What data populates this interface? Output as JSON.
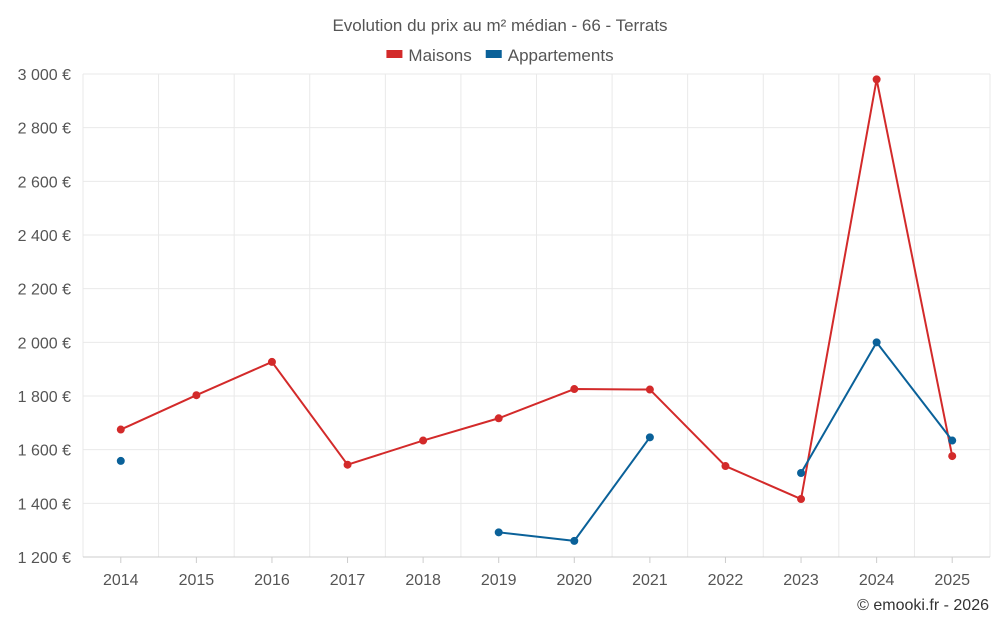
{
  "chart_data": {
    "type": "line",
    "title": "Evolution du prix au m² médian - 66 - Terrats",
    "categories": [
      "2014",
      "2015",
      "2016",
      "2017",
      "2018",
      "2019",
      "2020",
      "2021",
      "2022",
      "2023",
      "2024",
      "2025"
    ],
    "series": [
      {
        "name": "Maisons",
        "color": "#d32a2a",
        "values": [
          1675,
          1803,
          1927,
          1544,
          1634,
          1717,
          1826,
          1824,
          1539,
          1416,
          2980,
          1576
        ]
      },
      {
        "name": "Appartements",
        "color": "#0a6199",
        "values": [
          1558,
          null,
          null,
          null,
          null,
          1292,
          1260,
          1646,
          null,
          1513,
          2000,
          1634
        ]
      }
    ],
    "ylim": [
      1200,
      3000
    ],
    "yticks": [
      1200,
      1400,
      1600,
      1800,
      2000,
      2200,
      2400,
      2600,
      2800,
      3000
    ],
    "ytick_labels": [
      "1 200 €",
      "1 400 €",
      "1 600 €",
      "1 800 €",
      "2 000 €",
      "2 200 €",
      "2 400 €",
      "2 600 €",
      "2 800 €",
      "3 000 €"
    ],
    "xlabel": "",
    "ylabel": "",
    "legend": "top-center",
    "grid": true,
    "credit": "© emooki.fr - 2026"
  }
}
